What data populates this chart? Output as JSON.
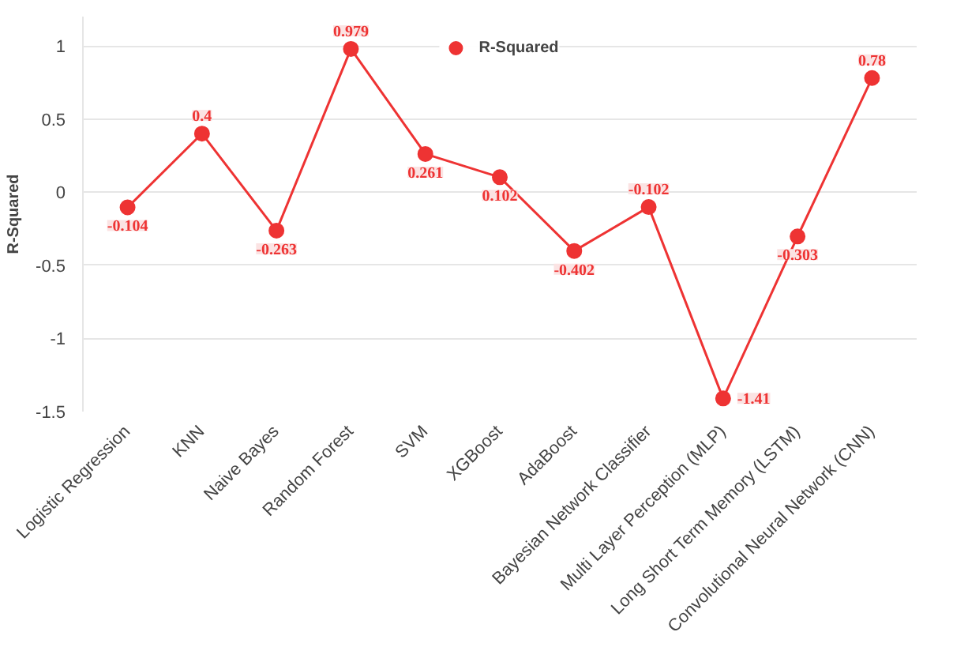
{
  "chart_data": {
    "type": "line",
    "ylabel": "R-Squared",
    "categories": [
      "Logistic Regression",
      "KNN",
      "Naive Bayes",
      "Random Forest",
      "SVM",
      "XGBoost",
      "AdaBoost",
      "Bayesian Network Classifier",
      "Multi Layer Perception (MLP)",
      "Long Short Term Memory (LSTM)",
      "Convolutional Neural Network (CNN)"
    ],
    "series": [
      {
        "name": "R-Squared",
        "color": "#ee3333",
        "values": [
          -0.104,
          0.4,
          -0.263,
          0.979,
          0.261,
          0.102,
          -0.402,
          -0.102,
          -1.41,
          -0.303,
          0.78
        ]
      }
    ],
    "ylim": [
      -1.5,
      1.2
    ],
    "yticks": [
      -1.5,
      -1,
      -0.5,
      0,
      0.5,
      1
    ],
    "grid": "y",
    "legend": "top",
    "marker": "circle",
    "line_style": "solid",
    "data_labels": true
  }
}
